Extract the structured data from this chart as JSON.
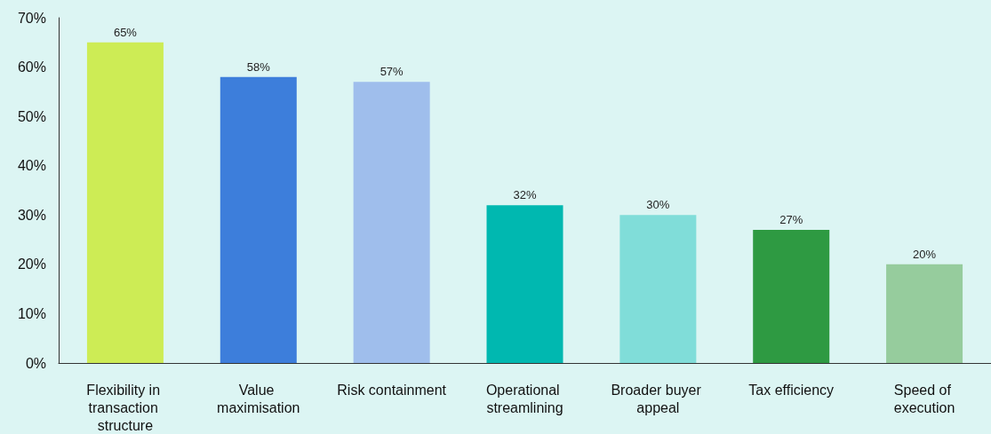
{
  "chart_data": {
    "type": "bar",
    "categories": [
      "Flexibility in transaction structure",
      "Value maximisation",
      "Risk containment",
      "Operational streamlining",
      "Broader buyer appeal",
      "Tax efficiency",
      "Speed of execution"
    ],
    "values": [
      65,
      58,
      57,
      32,
      30,
      27,
      20
    ],
    "colors": [
      "#cdec55",
      "#3d7edb",
      "#9fbeec",
      "#00b8b0",
      "#80ddd9",
      "#2e9a42",
      "#96cc9d"
    ],
    "ylim": [
      0,
      70
    ],
    "yticks": [
      {
        "value": 0,
        "label": "0%"
      },
      {
        "value": 10,
        "label": "10%"
      },
      {
        "value": 20,
        "label": "20%"
      },
      {
        "value": 30,
        "label": "30%"
      },
      {
        "value": 40,
        "label": "40%"
      },
      {
        "value": 50,
        "label": "50%"
      },
      {
        "value": 60,
        "label": "60%"
      },
      {
        "value": 70,
        "label": "70%"
      }
    ],
    "value_labels": [
      "65%",
      "58%",
      "57%",
      "32%",
      "30%",
      "27%",
      "20%"
    ],
    "grid": false
  }
}
